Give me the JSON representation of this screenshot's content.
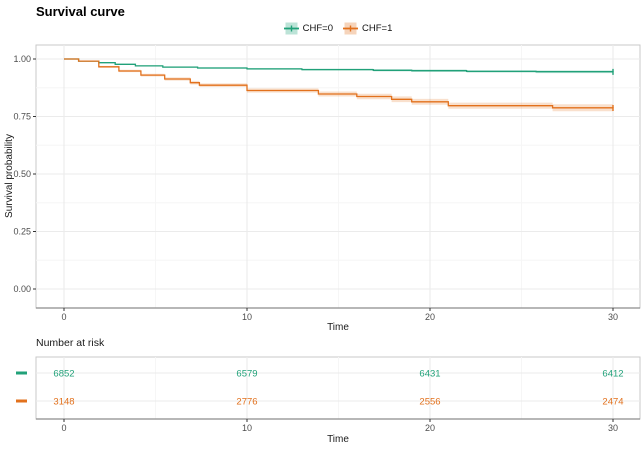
{
  "title": "Survival curve",
  "legend": {
    "items": [
      {
        "label": "CHF=0"
      },
      {
        "label": "CHF=1"
      }
    ]
  },
  "axes": {
    "x_label": "Time",
    "y_label": "Survival probability"
  },
  "risk": {
    "title": "Number at risk"
  },
  "colors": {
    "chf0_line": "#21A179",
    "chf0_band": "rgba(33,161,121,0.22)",
    "chf1_line": "#E2711D",
    "chf1_band": "rgba(226,113,29,0.22)",
    "grid_major": "#EBEBEB",
    "grid_minor": "#F5F5F5",
    "panel_border": "#C9C9C9",
    "axis_line": "#8C8C8C",
    "tick_mark": "#333333",
    "tick_text": "#4D4D4D",
    "axis_title_text": "#1A1A1A"
  },
  "chart_data": {
    "type": "line",
    "subtype": "kaplan-meier-step-with-ci-band",
    "title": "Survival curve",
    "xlabel": "Time",
    "ylabel": "Survival probability",
    "xlim": [
      0,
      30
    ],
    "ylim": [
      0,
      1
    ],
    "x_ticks": [
      0,
      10,
      20,
      30
    ],
    "x_minor_ticks": [
      5,
      15,
      25
    ],
    "y_ticks": [
      {
        "v": 1.0,
        "label": "1.00"
      },
      {
        "v": 0.75,
        "label": "0.75"
      },
      {
        "v": 0.5,
        "label": "0.50"
      },
      {
        "v": 0.25,
        "label": "0.25"
      },
      {
        "v": 0.0,
        "label": "0.00"
      }
    ],
    "y_minor_ticks": [
      0.875,
      0.625,
      0.375,
      0.125
    ],
    "grid": true,
    "legend_position": "top",
    "series": [
      {
        "name": "CHF=0",
        "color": "#21A179",
        "band_color": "rgba(33,161,121,0.22)",
        "band_halfwidth_end": 0.007,
        "steps": [
          [
            0,
            1.0
          ],
          [
            0.8,
            0.991
          ],
          [
            1.9,
            0.984
          ],
          [
            2.8,
            0.977
          ],
          [
            3.9,
            0.97
          ],
          [
            5.4,
            0.965
          ],
          [
            7.3,
            0.961
          ],
          [
            10.0,
            0.957
          ],
          [
            13.0,
            0.954
          ],
          [
            16.9,
            0.951
          ],
          [
            19.0,
            0.949
          ],
          [
            22.0,
            0.946
          ],
          [
            25.8,
            0.945
          ],
          [
            30,
            0.944
          ]
        ]
      },
      {
        "name": "CHF=1",
        "color": "#E2711D",
        "band_color": "rgba(226,113,29,0.22)",
        "band_halfwidth_end": 0.016,
        "steps": [
          [
            0,
            1.0
          ],
          [
            0.8,
            0.991
          ],
          [
            1.9,
            0.966
          ],
          [
            3.0,
            0.948
          ],
          [
            4.2,
            0.93
          ],
          [
            5.5,
            0.913
          ],
          [
            6.9,
            0.897
          ],
          [
            7.4,
            0.886
          ],
          [
            10.0,
            0.863
          ],
          [
            13.9,
            0.848
          ],
          [
            16.0,
            0.837
          ],
          [
            17.9,
            0.825
          ],
          [
            19.0,
            0.814
          ],
          [
            21.0,
            0.797
          ],
          [
            26.7,
            0.788
          ],
          [
            30,
            0.787
          ]
        ]
      }
    ],
    "risk_table": {
      "title": "Number at risk",
      "time_points": [
        0,
        10,
        20,
        30
      ],
      "rows": [
        {
          "name": "CHF=0",
          "color": "#21A179",
          "values": [
            6852,
            6579,
            6431,
            6412
          ]
        },
        {
          "name": "CHF=1",
          "color": "#E2711D",
          "values": [
            3148,
            2776,
            2556,
            2474
          ]
        }
      ]
    }
  }
}
